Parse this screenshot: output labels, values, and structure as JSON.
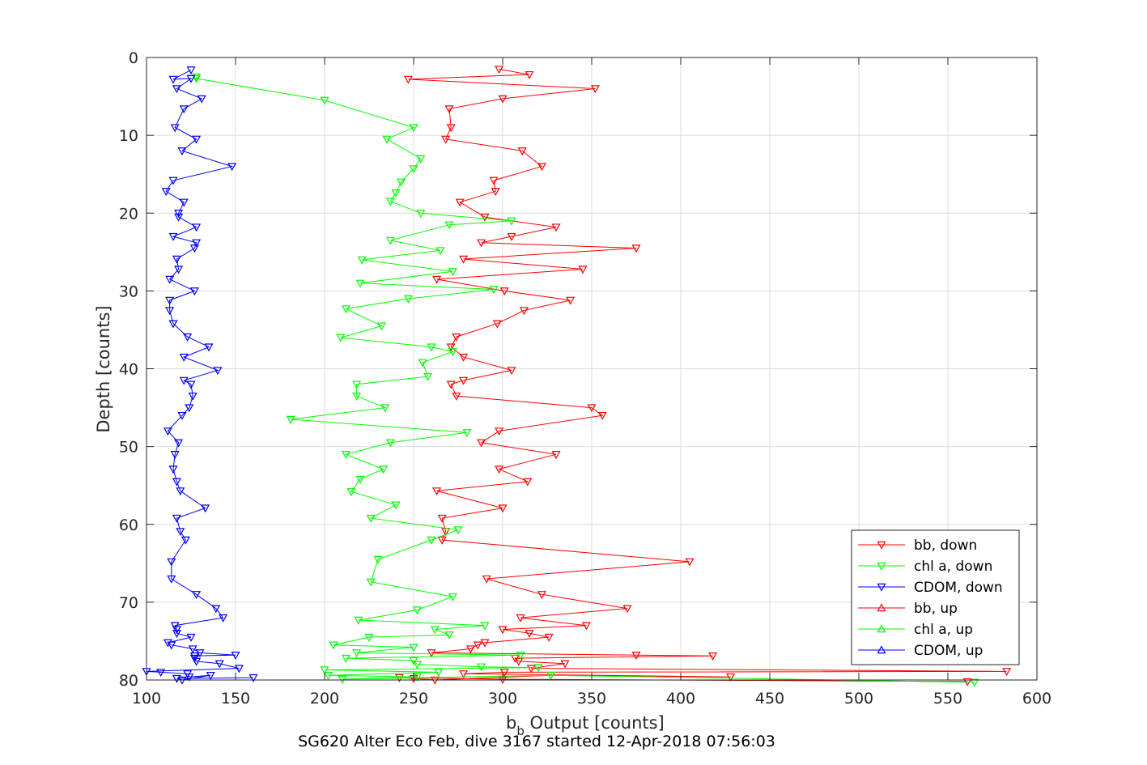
{
  "chart_data": {
    "type": "line",
    "title": "",
    "xlabel_main": "b",
    "xlabel_sub": "b",
    "xlabel_rest": " Output [counts]",
    "ylabel": "Depth [counts]",
    "caption": "SG620 Alter Eco Feb, dive 3167 started 12-Apr-2018 07:56:03",
    "xlim": [
      100,
      600
    ],
    "ylim": [
      0,
      80
    ],
    "y_reversed": true,
    "x_ticks": [
      100,
      150,
      200,
      250,
      300,
      350,
      400,
      450,
      500,
      550,
      600
    ],
    "y_ticks": [
      0,
      10,
      20,
      30,
      40,
      50,
      60,
      70,
      80
    ],
    "grid": true,
    "legend_position": "bottom-right",
    "series": [
      {
        "name": "bb, down",
        "color": "#ff0000",
        "marker": "triangle-down",
        "points": [
          [
            298,
            1.5
          ],
          [
            315,
            2.2
          ],
          [
            247,
            2.8
          ],
          [
            352,
            4
          ],
          [
            300,
            5.3
          ],
          [
            270,
            6.6
          ],
          [
            271,
            9
          ],
          [
            268,
            10.5
          ],
          [
            311,
            12
          ],
          [
            322,
            14
          ],
          [
            295,
            15.8
          ],
          [
            296,
            17.2
          ],
          [
            276,
            18.6
          ],
          [
            290,
            20.5
          ],
          [
            330,
            21.8
          ],
          [
            305,
            23
          ],
          [
            288,
            23.8
          ],
          [
            375,
            24.5
          ],
          [
            278,
            25.9
          ],
          [
            345,
            27.2
          ],
          [
            263,
            28.5
          ],
          [
            301,
            30
          ],
          [
            338,
            31.2
          ],
          [
            312,
            32.5
          ],
          [
            297,
            34.2
          ],
          [
            274,
            35.9
          ],
          [
            271,
            37.2
          ],
          [
            278,
            38.5
          ],
          [
            305,
            40.2
          ],
          [
            278,
            41.5
          ],
          [
            271,
            42
          ],
          [
            274,
            43.5
          ],
          [
            350,
            45
          ],
          [
            356,
            46
          ],
          [
            298,
            48
          ],
          [
            288,
            49.5
          ],
          [
            330,
            51
          ],
          [
            298,
            52.9
          ],
          [
            314,
            54.5
          ],
          [
            263,
            55.7
          ],
          [
            300,
            57.9
          ],
          [
            266,
            59.2
          ],
          [
            268,
            60.9
          ],
          [
            266,
            62
          ],
          [
            405,
            64.8
          ],
          [
            291,
            67
          ],
          [
            322,
            69
          ],
          [
            370,
            70.8
          ],
          [
            310,
            72
          ],
          [
            347,
            73
          ],
          [
            300,
            73.5
          ],
          [
            315,
            74
          ],
          [
            326,
            74.5
          ],
          [
            290,
            75.2
          ],
          [
            286,
            75.5
          ],
          [
            282,
            76
          ],
          [
            260,
            76.5
          ],
          [
            375,
            76.8
          ],
          [
            418,
            76.9
          ],
          [
            307,
            77.2
          ],
          [
            309,
            77.6
          ],
          [
            335,
            77.9
          ],
          [
            316,
            78.5
          ],
          [
            583,
            78.9
          ],
          [
            301,
            79
          ],
          [
            278,
            79.2
          ],
          [
            428,
            79.6
          ],
          [
            327,
            79.4
          ],
          [
            262,
            80
          ],
          [
            250,
            79.8
          ],
          [
            242,
            79.7
          ],
          [
            300,
            79.9
          ],
          [
            561,
            80.2
          ]
        ]
      },
      {
        "name": "chl a, down",
        "color": "#00ff00",
        "marker": "triangle-down",
        "points": [
          [
            128,
            2.5
          ],
          [
            128,
            2.7
          ],
          [
            200,
            5.5
          ],
          [
            250,
            9
          ],
          [
            235,
            10.5
          ],
          [
            254,
            13
          ],
          [
            250,
            14.3
          ],
          [
            243,
            16
          ],
          [
            240,
            17.4
          ],
          [
            237,
            18.5
          ],
          [
            254,
            20
          ],
          [
            305,
            21
          ],
          [
            270,
            21.5
          ],
          [
            237,
            23.5
          ],
          [
            265,
            24.8
          ],
          [
            221,
            26
          ],
          [
            272,
            27.5
          ],
          [
            220,
            29
          ],
          [
            295,
            29.8
          ],
          [
            247,
            31
          ],
          [
            212,
            32.3
          ],
          [
            232,
            34.5
          ],
          [
            209,
            36
          ],
          [
            260,
            37.2
          ],
          [
            272,
            37.8
          ],
          [
            255,
            39.2
          ],
          [
            258,
            41
          ],
          [
            218,
            42
          ],
          [
            218,
            43.5
          ],
          [
            234,
            45
          ],
          [
            181,
            46.5
          ],
          [
            280,
            48.2
          ],
          [
            237,
            49.5
          ],
          [
            212,
            51
          ],
          [
            233,
            52.9
          ],
          [
            220,
            54.2
          ],
          [
            215,
            55.8
          ],
          [
            240,
            57.5
          ],
          [
            226,
            59.2
          ],
          [
            275,
            60.7
          ],
          [
            260,
            62
          ],
          [
            230,
            64.5
          ],
          [
            226,
            67.4
          ],
          [
            272,
            69.3
          ],
          [
            252,
            71
          ],
          [
            219,
            72.3
          ],
          [
            290,
            73
          ],
          [
            262,
            73.5
          ],
          [
            270,
            74.2
          ],
          [
            225,
            74.5
          ],
          [
            205,
            75.5
          ],
          [
            250,
            75.8
          ],
          [
            218,
            76.5
          ],
          [
            310,
            76.8
          ],
          [
            212,
            77.2
          ],
          [
            250,
            77.5
          ],
          [
            252,
            78
          ],
          [
            288,
            78.3
          ],
          [
            320,
            78.4
          ],
          [
            200,
            78.7
          ],
          [
            264,
            79
          ],
          [
            202,
            79.4
          ],
          [
            252,
            79.6
          ],
          [
            210,
            79.9
          ],
          [
            327,
            79.4
          ],
          [
            565,
            80.3
          ]
        ]
      },
      {
        "name": "CDOM, down",
        "color": "#0000ff",
        "marker": "triangle-down",
        "points": [
          [
            125,
            1.6
          ],
          [
            115,
            2.8
          ],
          [
            125,
            2.7
          ],
          [
            117,
            4
          ],
          [
            131,
            5.3
          ],
          [
            121,
            6.6
          ],
          [
            116,
            9
          ],
          [
            128,
            10.5
          ],
          [
            120,
            12
          ],
          [
            148,
            14
          ],
          [
            115,
            15.8
          ],
          [
            111,
            17.2
          ],
          [
            121,
            18.6
          ],
          [
            118,
            20
          ],
          [
            118,
            20.5
          ],
          [
            128,
            21.8
          ],
          [
            115,
            23
          ],
          [
            128,
            23.8
          ],
          [
            127,
            24.5
          ],
          [
            117,
            25.9
          ],
          [
            118,
            27.2
          ],
          [
            113,
            28.5
          ],
          [
            127,
            30
          ],
          [
            113,
            31.2
          ],
          [
            113,
            32.5
          ],
          [
            115,
            34.2
          ],
          [
            123,
            35.9
          ],
          [
            135,
            37.2
          ],
          [
            121,
            38.5
          ],
          [
            140,
            40.2
          ],
          [
            121,
            41.5
          ],
          [
            125,
            42
          ],
          [
            126,
            43.5
          ],
          [
            124,
            45
          ],
          [
            120,
            46
          ],
          [
            112,
            48
          ],
          [
            118,
            49.5
          ],
          [
            116,
            51
          ],
          [
            115,
            52.9
          ],
          [
            117,
            54.5
          ],
          [
            119,
            55.7
          ],
          [
            133,
            57.9
          ],
          [
            117,
            59.2
          ],
          [
            119,
            60.9
          ],
          [
            122,
            62
          ],
          [
            114,
            64.8
          ],
          [
            114,
            67
          ],
          [
            128,
            69
          ],
          [
            139,
            70.8
          ],
          [
            143,
            72
          ],
          [
            116,
            73
          ],
          [
            117,
            73.5
          ],
          [
            117,
            74
          ],
          [
            125,
            74.5
          ],
          [
            112,
            75.2
          ],
          [
            114,
            75.5
          ],
          [
            126,
            76
          ],
          [
            130,
            76.5
          ],
          [
            150,
            76.8
          ],
          [
            127,
            76.9
          ],
          [
            127,
            77.2
          ],
          [
            128,
            77.6
          ],
          [
            141,
            77.9
          ],
          [
            152,
            78.5
          ],
          [
            100,
            78.9
          ],
          [
            108,
            79
          ],
          [
            123,
            79.2
          ],
          [
            124,
            79.6
          ],
          [
            136,
            79.4
          ],
          [
            120,
            80
          ],
          [
            117,
            79.8
          ],
          [
            160,
            79.7
          ]
        ]
      },
      {
        "name": "bb, up",
        "color": "#ff0000",
        "marker": "triangle-up",
        "points": []
      },
      {
        "name": "chl a, up",
        "color": "#00ff00",
        "marker": "triangle-up",
        "points": []
      },
      {
        "name": "CDOM, up",
        "color": "#0000ff",
        "marker": "triangle-up",
        "points": []
      }
    ]
  }
}
